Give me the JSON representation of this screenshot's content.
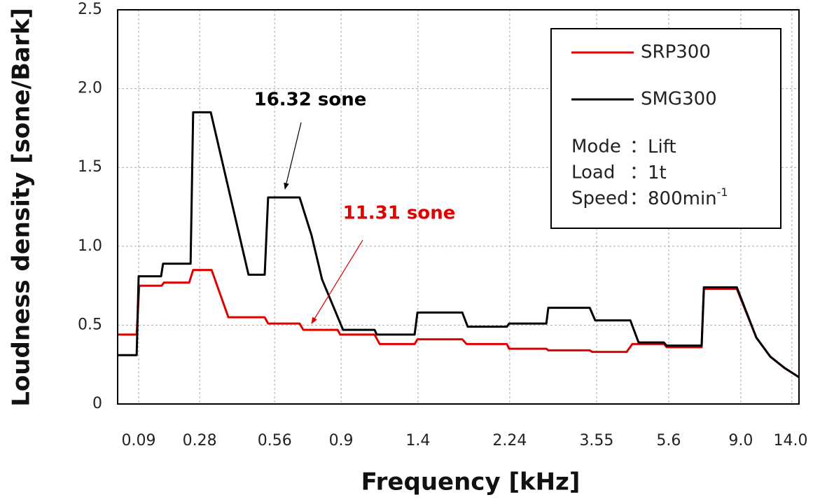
{
  "chart_data": {
    "type": "line",
    "xlabel": "Frequency [kHz]",
    "ylabel": "Loudness density [sone/Bark]",
    "xlim": [
      0.25,
      24.25
    ],
    "ylim": [
      0,
      2.5
    ],
    "xticks": [
      {
        "value": 0.99,
        "label": "0.09"
      },
      {
        "value": 3.14,
        "label": "0.28"
      },
      {
        "value": 5.78,
        "label": "0.56"
      },
      {
        "value": 8.12,
        "label": "0.9"
      },
      {
        "value": 10.83,
        "label": "1.4"
      },
      {
        "value": 14.06,
        "label": "2.24"
      },
      {
        "value": 17.12,
        "label": "3.55"
      },
      {
        "value": 19.66,
        "label": "5.6"
      },
      {
        "value": 22.2,
        "label": "9.0"
      },
      {
        "value": 24.0,
        "label": "14.0"
      }
    ],
    "yticks": [
      0,
      0.5,
      {
        "value": 1,
        "label": "1.0"
      },
      1.5,
      {
        "value": 2,
        "label": "2.0"
      },
      2.5
    ],
    "grid": true,
    "series": [
      {
        "name": "SRP300",
        "color": "#e00000",
        "x": [
          0.25,
          0.92,
          1.01,
          1.8,
          1.88,
          2.77,
          2.91,
          3.56,
          4.15,
          5.43,
          5.55,
          6.66,
          6.79,
          8.0,
          8.09,
          9.3,
          9.48,
          10.71,
          10.81,
          12.39,
          12.54,
          13.96,
          14.04,
          15.35,
          15.42,
          16.88,
          16.97,
          18.18,
          18.38,
          19.49,
          19.59,
          20.82,
          20.9,
          22.06,
          22.75,
          23.24,
          23.73,
          24.25
        ],
        "values": [
          0.44,
          0.44,
          0.75,
          0.75,
          0.77,
          0.77,
          0.85,
          0.85,
          0.55,
          0.55,
          0.51,
          0.51,
          0.47,
          0.47,
          0.44,
          0.44,
          0.38,
          0.38,
          0.41,
          0.41,
          0.38,
          0.38,
          0.35,
          0.35,
          0.34,
          0.34,
          0.33,
          0.33,
          0.38,
          0.38,
          0.36,
          0.36,
          0.73,
          0.73,
          0.42,
          0.3,
          0.23,
          0.17
        ]
      },
      {
        "name": "SMG300",
        "color": "#000000",
        "x": [
          0.25,
          0.92,
          0.99,
          1.78,
          1.85,
          2.82,
          2.91,
          3.53,
          4.86,
          5.43,
          5.55,
          6.66,
          7.08,
          7.45,
          8.19,
          9.3,
          9.38,
          10.71,
          10.81,
          12.39,
          12.58,
          13.96,
          14.04,
          15.35,
          15.42,
          16.88,
          17.07,
          18.31,
          18.6,
          19.49,
          19.59,
          20.82,
          20.9,
          22.06,
          22.75,
          23.24,
          23.73,
          24.25
        ],
        "values": [
          0.31,
          0.31,
          0.81,
          0.81,
          0.89,
          0.89,
          1.85,
          1.85,
          0.82,
          0.82,
          1.31,
          1.31,
          1.07,
          0.79,
          0.47,
          0.47,
          0.44,
          0.44,
          0.58,
          0.58,
          0.49,
          0.49,
          0.51,
          0.51,
          0.61,
          0.61,
          0.53,
          0.53,
          0.39,
          0.39,
          0.37,
          0.37,
          0.74,
          0.74,
          0.42,
          0.3,
          0.23,
          0.17
        ]
      }
    ],
    "legend": "upper right",
    "conditions": [
      {
        "label": "Mode",
        "value": "：Lift"
      },
      {
        "label": "Load",
        "value": "：1t"
      },
      {
        "label": "Speed",
        "value": "：800min",
        "superscript": "-1"
      }
    ],
    "annotations": [
      {
        "text": "16.32 sone",
        "color": "#000000"
      },
      {
        "text": "11.31 sone",
        "color": "#e00000"
      }
    ]
  }
}
